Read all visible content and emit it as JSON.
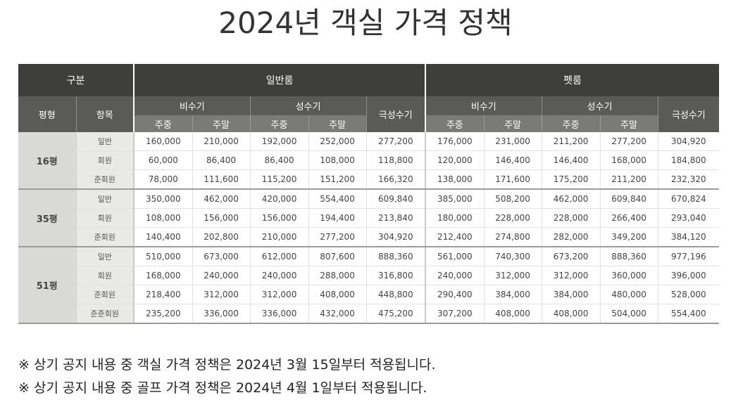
{
  "title": "2024년 객실 가격 정책",
  "header": {
    "category": "구분",
    "general_room": "일반룸",
    "pet_room": "펫룸",
    "size": "평형",
    "item": "항목",
    "off_season": "비수기",
    "peak_season": "성수기",
    "super_peak": "극성수기",
    "weekday": "주중",
    "weekend": "주말"
  },
  "groups": [
    {
      "size": "16평",
      "rows": [
        {
          "item": "일반",
          "values": [
            "160,000",
            "210,000",
            "192,000",
            "252,000",
            "277,200",
            "176,000",
            "231,000",
            "211,200",
            "277,200",
            "304,920"
          ]
        },
        {
          "item": "회원",
          "values": [
            "60,000",
            "86,400",
            "86,400",
            "108,000",
            "118,800",
            "120,000",
            "146,400",
            "146,400",
            "168,000",
            "184,800"
          ]
        },
        {
          "item": "준회원",
          "values": [
            "78,000",
            "111,600",
            "115,200",
            "151,200",
            "166,320",
            "138,000",
            "171,600",
            "175,200",
            "211,200",
            "232,320"
          ]
        }
      ]
    },
    {
      "size": "35평",
      "rows": [
        {
          "item": "일반",
          "values": [
            "350,000",
            "462,000",
            "420,000",
            "554,400",
            "609,840",
            "385,000",
            "508,200",
            "462,000",
            "609,840",
            "670,824"
          ]
        },
        {
          "item": "회원",
          "values": [
            "108,000",
            "156,000",
            "156,000",
            "194,400",
            "213,840",
            "180,000",
            "228,000",
            "228,000",
            "266,400",
            "293,040"
          ]
        },
        {
          "item": "준회원",
          "values": [
            "140,400",
            "202,800",
            "210,000",
            "277,200",
            "304,920",
            "212,400",
            "274,800",
            "282,000",
            "349,200",
            "384,120"
          ]
        }
      ]
    },
    {
      "size": "51평",
      "rows": [
        {
          "item": "일반",
          "values": [
            "510,000",
            "673,000",
            "612,000",
            "807,600",
            "888,360",
            "561,000",
            "740,300",
            "673,200",
            "888,360",
            "977,196"
          ]
        },
        {
          "item": "회원",
          "values": [
            "168,000",
            "240,000",
            "240,000",
            "288,000",
            "316,800",
            "240,000",
            "312,000",
            "312,000",
            "360,000",
            "396,000"
          ]
        },
        {
          "item": "준회원",
          "values": [
            "218,400",
            "312,000",
            "312,000",
            "408,000",
            "448,800",
            "290,400",
            "384,000",
            "384,000",
            "480,000",
            "528,000"
          ]
        },
        {
          "item": "준준회원",
          "values": [
            "235,200",
            "336,000",
            "336,000",
            "432,000",
            "475,200",
            "307,200",
            "408,000",
            "408,000",
            "504,000",
            "554,400"
          ]
        }
      ]
    }
  ],
  "notes": [
    "※ 상기 공지 내용 중 객실 가격 정책은 2024년 3월 15일부터 적용됩니다.",
    "※ 상기 공지 내용 중 골프 가격 정책은 2024년 4월 1일부터 적용됩니다."
  ]
}
